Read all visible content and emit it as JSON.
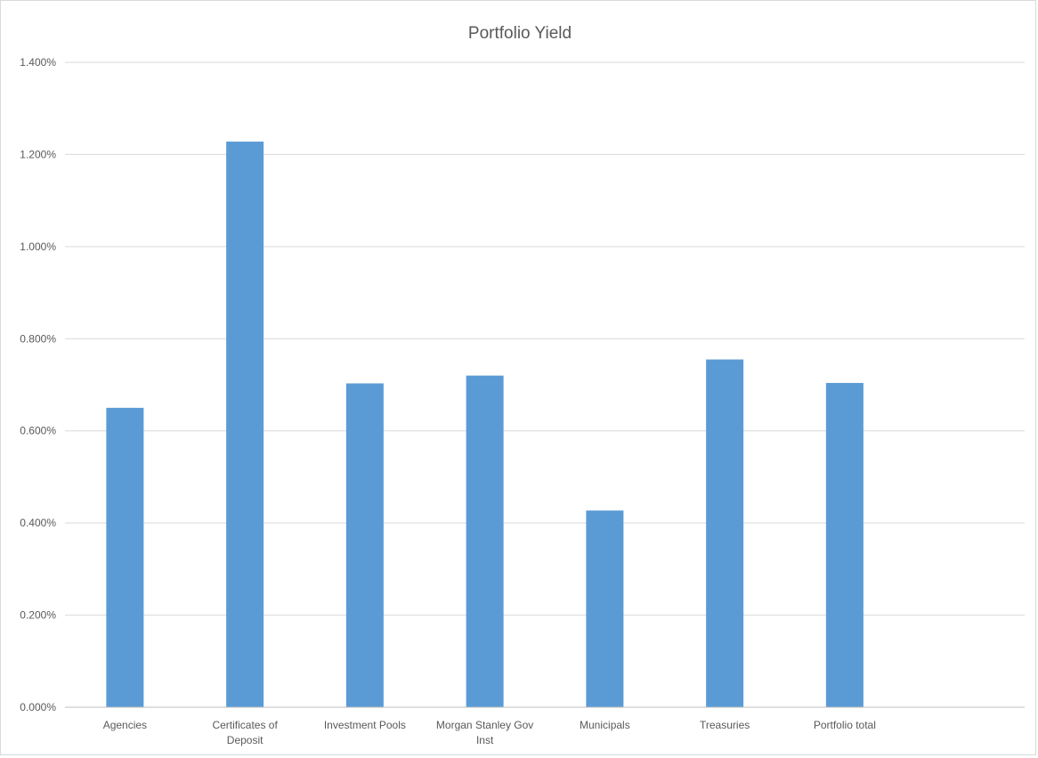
{
  "chart_data": {
    "type": "bar",
    "title": "Portfolio Yield",
    "categories": [
      [
        "Agencies"
      ],
      [
        "Certificates of",
        "Deposit"
      ],
      [
        "Investment Pools"
      ],
      [
        "Morgan Stanley Gov",
        "Inst"
      ],
      [
        "Municipals"
      ],
      [
        "Treasuries"
      ],
      [
        "Portfolio total"
      ]
    ],
    "series": [
      {
        "values": [
          0.65,
          1.228,
          0.703,
          0.72,
          0.427,
          0.755,
          0.704
        ]
      }
    ],
    "y_ticks": [
      "0.000%",
      "0.200%",
      "0.400%",
      "0.600%",
      "0.800%",
      "1.000%",
      "1.200%",
      "1.400%"
    ],
    "ylim": [
      0,
      1.4
    ],
    "slot_count": 8,
    "grid": true,
    "legend": "none",
    "bar_color": "#5b9bd5"
  }
}
